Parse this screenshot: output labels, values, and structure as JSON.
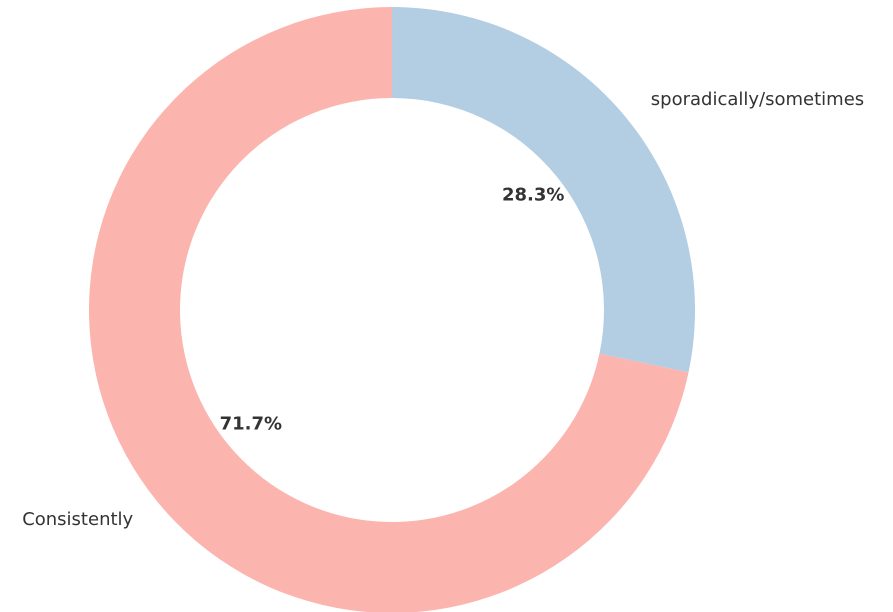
{
  "chart_data": {
    "type": "donut",
    "categories": [
      "sporadically/sometimes",
      "Consistently"
    ],
    "values": [
      28.3,
      71.7
    ],
    "value_labels": [
      "28.3%",
      "71.7%"
    ],
    "colors": [
      "#b3cde3",
      "#fbb4ae"
    ]
  }
}
